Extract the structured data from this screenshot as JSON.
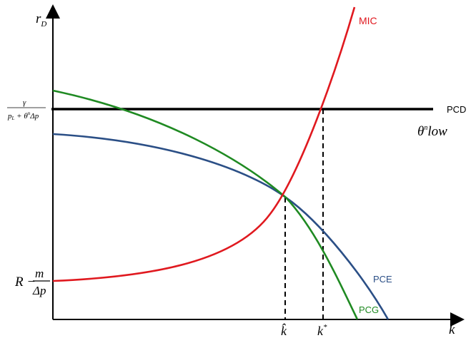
{
  "axes": {
    "y_label": "r",
    "y_label_sub": "D",
    "x_label": "k"
  },
  "curves": {
    "mic": {
      "label": "MIC",
      "color": "#e0191f"
    },
    "pcd": {
      "label": "PCD",
      "color": "#000000"
    },
    "pce": {
      "label": "PCE",
      "color": "#2b4f86"
    },
    "pcg": {
      "label": "PCG",
      "color": "#1f8a22"
    }
  },
  "annotations": {
    "theta_low": {
      "theta": "θ",
      "sup": "n",
      "text": "low"
    }
  },
  "y_ticks": {
    "pcd_level": {
      "num": "γ",
      "den_a": "p",
      "den_a_sub": "L",
      "den_b": " + θ",
      "den_b_sup": "n",
      "den_c": "Δp"
    },
    "intercept": {
      "lead": "R − ",
      "num": "m",
      "den": "Δp"
    }
  },
  "x_ticks": {
    "k_hat": "k̂",
    "k_star": {
      "base": "k",
      "sup": "*"
    }
  }
}
